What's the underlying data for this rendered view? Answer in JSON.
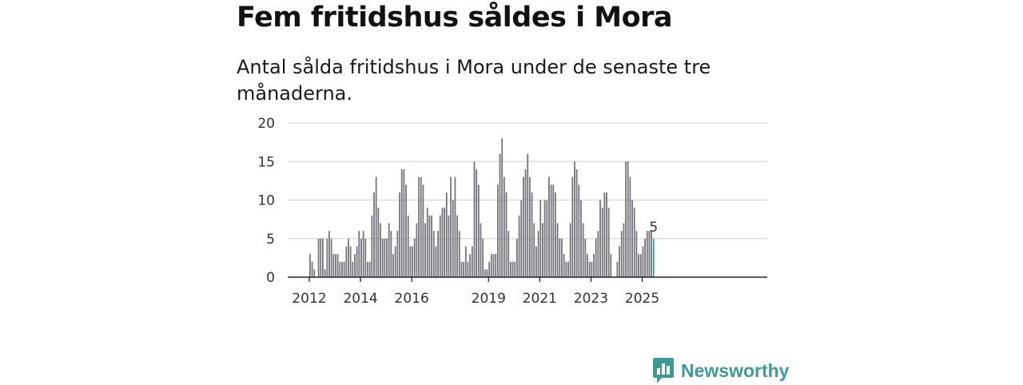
{
  "header": {
    "title": "Fem fritidshus såldes i Mora",
    "subtitle": "Antal sålda fritidshus i Mora under de senaste tre månaderna."
  },
  "branding": {
    "logo_text": "Newsworthy",
    "logo_icon": "bar-chart-badge-icon"
  },
  "colors": {
    "bar": "#77757c",
    "highlight": "#2aa7a2",
    "grid": "#d9d9d9",
    "axis": "#222222",
    "brand": "#3d9a99"
  },
  "chart_data": {
    "type": "bar",
    "title": "Fem fritidshus såldes i Mora",
    "subtitle": "Antal sålda fritidshus i Mora under de senaste tre månaderna.",
    "xlabel": "",
    "ylabel": "",
    "ylim": [
      0,
      20
    ],
    "yticks": [
      0,
      5,
      10,
      15,
      20
    ],
    "xticks": [
      "2012",
      "2014",
      "2016",
      "2019",
      "2021",
      "2023",
      "2025"
    ],
    "grid": true,
    "series": [
      {
        "name": "Antal sålda fritidshus",
        "values": [
          3,
          2,
          1,
          0,
          5,
          5,
          5,
          1,
          5,
          6,
          5,
          3,
          3,
          3,
          2,
          2,
          2,
          4,
          5,
          4,
          2,
          3,
          4,
          6,
          5,
          6,
          5,
          2,
          2,
          8,
          11,
          13,
          9,
          7,
          5,
          5,
          5,
          7,
          6,
          3,
          4,
          6,
          11,
          14,
          14,
          12,
          8,
          4,
          4,
          5,
          7,
          13,
          13,
          12,
          7,
          9,
          8,
          8,
          6,
          4,
          6,
          8,
          9,
          9,
          11,
          8,
          13,
          10,
          13,
          8,
          6,
          2,
          2,
          4,
          2,
          3,
          4,
          15,
          14,
          12,
          7,
          5,
          1,
          1,
          2,
          3,
          3,
          3,
          12,
          16,
          18,
          13,
          11,
          6,
          2,
          2,
          2,
          5,
          8,
          10,
          13,
          14,
          16,
          13,
          11,
          7,
          4,
          6,
          10,
          7,
          10,
          10,
          13,
          12,
          12,
          11,
          7,
          5,
          5,
          3,
          2,
          2,
          7,
          13,
          15,
          14,
          12,
          10,
          7,
          5,
          3,
          2,
          2,
          3,
          5,
          6,
          10,
          9,
          11,
          11,
          9,
          3,
          0,
          0,
          2,
          4,
          6,
          7,
          15,
          15,
          13,
          10,
          9,
          6,
          3,
          3,
          4,
          5,
          6,
          6,
          6,
          5
        ]
      }
    ],
    "highlight": {
      "label": "5",
      "value": 5
    }
  }
}
